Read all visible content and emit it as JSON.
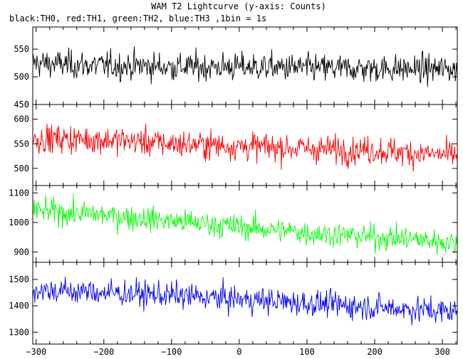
{
  "title": "WAM T2 Lightcurve (y-axis: Counts)",
  "subtitle": "black:TH0, red:TH1, green:TH2, blue:TH3 ,1bin = 1s",
  "chart_data": {
    "type": "line",
    "title": "WAM T2 Lightcurve (y-axis: Counts)",
    "subtitle": "black:TH0, red:TH1, green:TH2, blue:TH3 ,1bin = 1s",
    "ylabel": "Counts",
    "x_range": [
      -305,
      322
    ],
    "x_ticks": [
      -300,
      -200,
      -100,
      0,
      100,
      200,
      300
    ],
    "panels": [
      {
        "channel": "TH0",
        "color": "#000000",
        "ylim": [
          450,
          590
        ],
        "y_ticks": [
          450,
          500,
          550
        ],
        "samples": [
          {
            "x": -300,
            "y": 525
          },
          {
            "x": -250,
            "y": 522
          },
          {
            "x": -200,
            "y": 520
          },
          {
            "x": -150,
            "y": 520
          },
          {
            "x": -100,
            "y": 518
          },
          {
            "x": -50,
            "y": 518
          },
          {
            "x": 0,
            "y": 518
          },
          {
            "x": 50,
            "y": 517
          },
          {
            "x": 100,
            "y": 516
          },
          {
            "x": 150,
            "y": 515
          },
          {
            "x": 200,
            "y": 515
          },
          {
            "x": 250,
            "y": 514
          },
          {
            "x": 300,
            "y": 514
          },
          {
            "x": 320,
            "y": 513
          }
        ],
        "noise": 23
      },
      {
        "channel": "TH1",
        "color": "#ff0000",
        "ylim": [
          465,
          630
        ],
        "y_ticks": [
          500,
          550,
          600
        ],
        "samples": [
          {
            "x": -300,
            "y": 560
          },
          {
            "x": -250,
            "y": 560
          },
          {
            "x": -200,
            "y": 558
          },
          {
            "x": -150,
            "y": 555
          },
          {
            "x": -100,
            "y": 550
          },
          {
            "x": -50,
            "y": 548
          },
          {
            "x": 0,
            "y": 545
          },
          {
            "x": 50,
            "y": 543
          },
          {
            "x": 100,
            "y": 540
          },
          {
            "x": 150,
            "y": 538
          },
          {
            "x": 200,
            "y": 537
          },
          {
            "x": 250,
            "y": 532
          },
          {
            "x": 300,
            "y": 528
          },
          {
            "x": 320,
            "y": 526
          }
        ],
        "noise": 26
      },
      {
        "channel": "TH2",
        "color": "#00ff00",
        "ylim": [
          865,
          1125
        ],
        "y_ticks": [
          900,
          1000,
          1100
        ],
        "samples": [
          {
            "x": -300,
            "y": 1040
          },
          {
            "x": -250,
            "y": 1032
          },
          {
            "x": -200,
            "y": 1025
          },
          {
            "x": -150,
            "y": 1015
          },
          {
            "x": -100,
            "y": 1005
          },
          {
            "x": -50,
            "y": 995
          },
          {
            "x": 0,
            "y": 985
          },
          {
            "x": 50,
            "y": 975
          },
          {
            "x": 100,
            "y": 965
          },
          {
            "x": 150,
            "y": 958
          },
          {
            "x": 200,
            "y": 950
          },
          {
            "x": 250,
            "y": 945
          },
          {
            "x": 300,
            "y": 935
          },
          {
            "x": 320,
            "y": 930
          }
        ],
        "noise": 38
      },
      {
        "channel": "TH3",
        "color": "#0000ff",
        "ylim": [
          1255,
          1565
        ],
        "y_ticks": [
          1300,
          1400,
          1500
        ],
        "samples": [
          {
            "x": -300,
            "y": 1460
          },
          {
            "x": -250,
            "y": 1455
          },
          {
            "x": -200,
            "y": 1450
          },
          {
            "x": -150,
            "y": 1445
          },
          {
            "x": -100,
            "y": 1440
          },
          {
            "x": -50,
            "y": 1432
          },
          {
            "x": 0,
            "y": 1425
          },
          {
            "x": 50,
            "y": 1418
          },
          {
            "x": 100,
            "y": 1410
          },
          {
            "x": 150,
            "y": 1403
          },
          {
            "x": 200,
            "y": 1395
          },
          {
            "x": 250,
            "y": 1388
          },
          {
            "x": 300,
            "y": 1380
          },
          {
            "x": 320,
            "y": 1378
          }
        ],
        "noise": 45
      }
    ]
  }
}
